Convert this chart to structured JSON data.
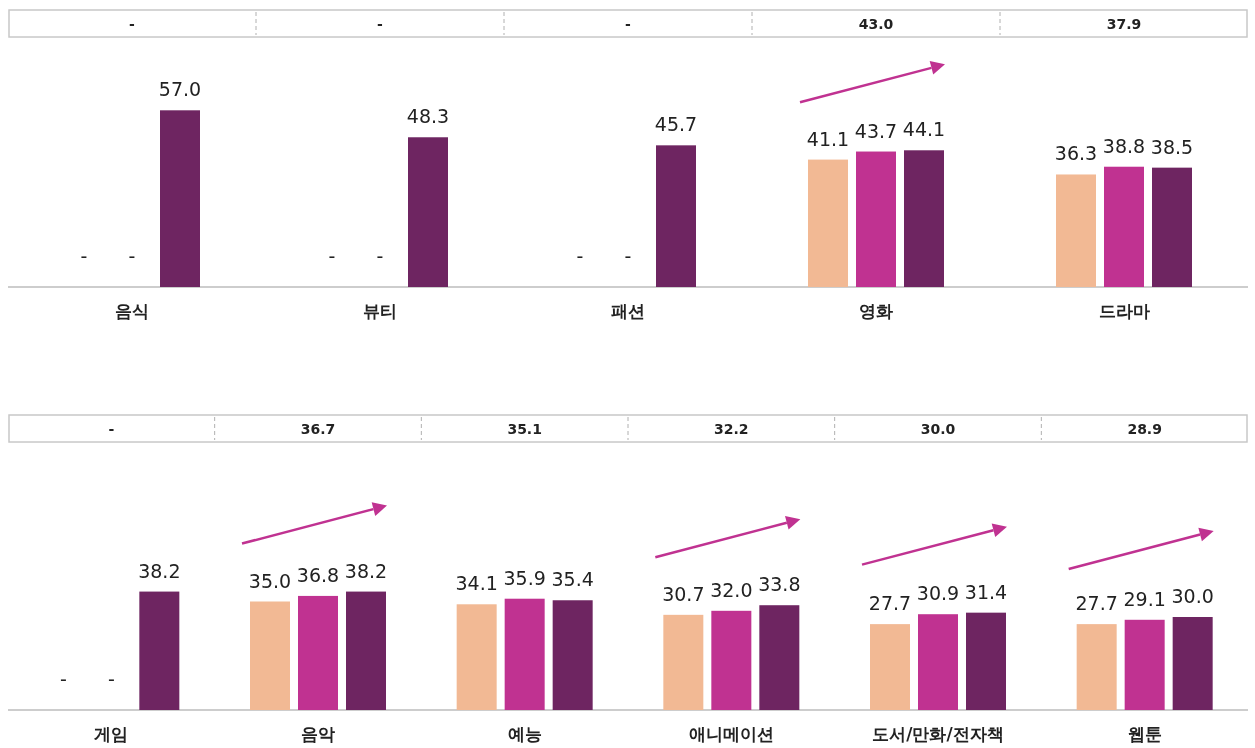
{
  "chart_data": [
    {
      "type": "bar",
      "categories": [
        "음식",
        "뷰티",
        "패션",
        "영화",
        "드라마"
      ],
      "series": [
        {
          "color": "#f2b994",
          "values": [
            null,
            null,
            null,
            41.1,
            36.3
          ],
          "value_labels": [
            "-",
            "-",
            "-",
            "41.1",
            "36.3"
          ]
        },
        {
          "color": "#c03291",
          "values": [
            null,
            null,
            null,
            43.7,
            38.8
          ],
          "value_labels": [
            "-",
            "-",
            "-",
            "43.7",
            "38.8"
          ]
        },
        {
          "color": "#6e2561",
          "values": [
            57.0,
            48.3,
            45.7,
            44.1,
            38.5
          ],
          "value_labels": [
            "57.0",
            "48.3",
            "45.7",
            "44.1",
            "38.5"
          ]
        }
      ],
      "annotations": [
        "-",
        "-",
        "-",
        "43.0",
        "37.9"
      ]
    },
    {
      "type": "bar",
      "categories": [
        "게임",
        "음악",
        "예능",
        "애니메이션",
        "도서/만화/전자책",
        "웹툰"
      ],
      "series": [
        {
          "color": "#f2b994",
          "values": [
            null,
            35.0,
            34.1,
            30.7,
            27.7,
            27.7
          ],
          "value_labels": [
            "-",
            "35.0",
            "34.1",
            "30.7",
            "27.7",
            "27.7"
          ]
        },
        {
          "color": "#c03291",
          "values": [
            null,
            36.8,
            35.9,
            32.0,
            30.9,
            29.1
          ],
          "value_labels": [
            "-",
            "36.8",
            "35.9",
            "32.0",
            "30.9",
            "29.1"
          ]
        },
        {
          "color": "#6e2561",
          "values": [
            38.2,
            38.2,
            35.4,
            33.8,
            31.4,
            30.0
          ],
          "value_labels": [
            "38.2",
            "38.2",
            "35.4",
            "33.8",
            "31.4",
            "30.0"
          ]
        }
      ],
      "annotations": [
        "-",
        "36.7",
        "35.1",
        "32.2",
        "30.0",
        "28.9"
      ]
    }
  ]
}
